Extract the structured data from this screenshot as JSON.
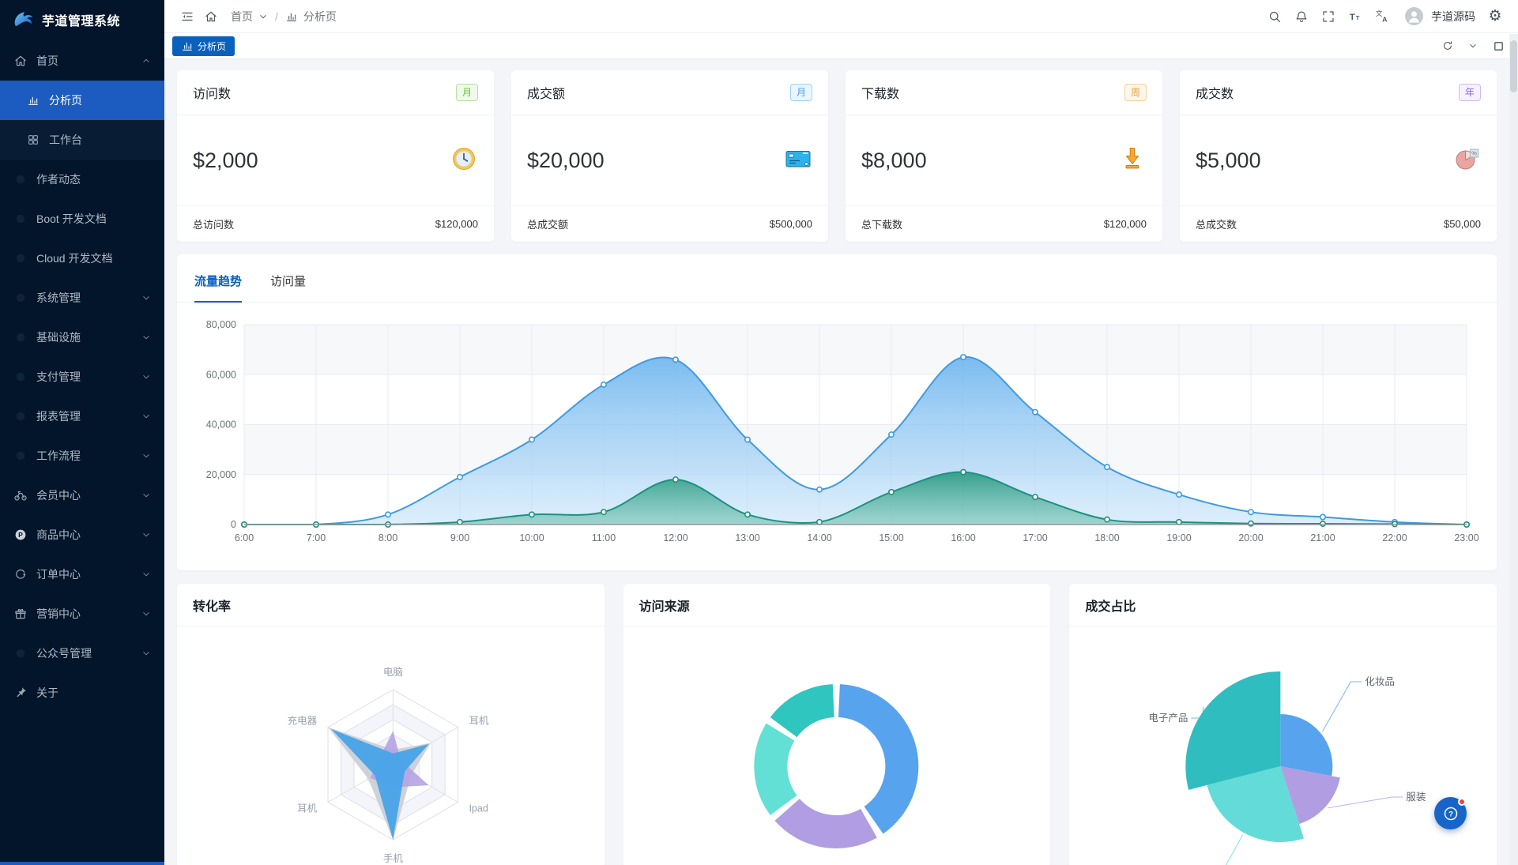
{
  "app": {
    "logo_title": "芋道管理系统"
  },
  "sidebar": {
    "items": [
      {
        "label": "首页",
        "icon": "home-icon",
        "chevron": "up",
        "type": "root"
      },
      {
        "label": "分析页",
        "icon": "bar-chart-icon",
        "type": "sub",
        "active": true
      },
      {
        "label": "工作台",
        "icon": "grid-icon",
        "type": "sub"
      },
      {
        "label": "作者动态",
        "icon": "dot-icon"
      },
      {
        "label": "Boot 开发文档",
        "icon": "dot-icon"
      },
      {
        "label": "Cloud 开发文档",
        "icon": "dot-icon"
      },
      {
        "label": "系统管理",
        "icon": "dot-icon",
        "chevron": "down"
      },
      {
        "label": "基础设施",
        "icon": "dot-icon",
        "chevron": "down"
      },
      {
        "label": "支付管理",
        "icon": "dot-icon",
        "chevron": "down"
      },
      {
        "label": "报表管理",
        "icon": "dot-icon",
        "chevron": "down"
      },
      {
        "label": "工作流程",
        "icon": "dot-icon",
        "chevron": "down"
      },
      {
        "label": "会员中心",
        "icon": "member-icon",
        "chevron": "down"
      },
      {
        "label": "商品中心",
        "icon": "product-icon",
        "chevron": "down"
      },
      {
        "label": "订单中心",
        "icon": "order-icon",
        "chevron": "down"
      },
      {
        "label": "营销中心",
        "icon": "gift-icon",
        "chevron": "down"
      },
      {
        "label": "公众号管理",
        "icon": "dot-icon",
        "chevron": "down"
      },
      {
        "label": "关于",
        "icon": "pin-icon"
      }
    ]
  },
  "header": {
    "breadcrumb_home": "首页",
    "breadcrumb_page": "分析页",
    "user_name": "芋道源码"
  },
  "tabbar": {
    "active_tab": "分析页"
  },
  "stats": [
    {
      "title": "访问数",
      "badge": "月",
      "badge_style": "green",
      "value": "$2,000",
      "icon": "clock-icon",
      "footer_label": "总访问数",
      "footer_value": "$120,000"
    },
    {
      "title": "成交额",
      "badge": "月",
      "badge_style": "blue",
      "value": "$20,000",
      "icon": "bank-card-icon",
      "footer_label": "总成交额",
      "footer_value": "$500,000"
    },
    {
      "title": "下载数",
      "badge": "周",
      "badge_style": "orange",
      "value": "$8,000",
      "icon": "download-icon",
      "footer_label": "总下载数",
      "footer_value": "$120,000"
    },
    {
      "title": "成交数",
      "badge": "年",
      "badge_style": "purple",
      "value": "$5,000",
      "icon": "percent-pie-icon",
      "footer_label": "总成交数",
      "footer_value": "$50,000"
    }
  ],
  "trend": {
    "tabs": [
      "流量趋势",
      "访问量"
    ],
    "active_tab_index": 0,
    "chart_data": {
      "type": "area",
      "x": [
        "6:00",
        "7:00",
        "8:00",
        "9:00",
        "10:00",
        "11:00",
        "12:00",
        "13:00",
        "14:00",
        "15:00",
        "16:00",
        "17:00",
        "18:00",
        "19:00",
        "20:00",
        "21:00",
        "22:00",
        "23:00"
      ],
      "ylim": [
        0,
        80000
      ],
      "yticks": [
        0,
        20000,
        40000,
        60000,
        80000
      ],
      "grid": "split-area",
      "legend": "none",
      "series": [
        {
          "name": "series-blue",
          "color": "#3f9ae2",
          "fill_top": "#6fb6ee",
          "fill_bottom": "#c0e0f9",
          "values": [
            0,
            0,
            4000,
            19000,
            34000,
            56000,
            66000,
            34000,
            14000,
            36000,
            67000,
            45000,
            23000,
            12000,
            5000,
            3000,
            1000,
            0
          ]
        },
        {
          "name": "series-green",
          "color": "#1d9180",
          "fill_top": "#2a9a83",
          "fill_bottom": "#6ec0ae",
          "values": [
            0,
            0,
            0,
            1000,
            4000,
            5000,
            18000,
            4000,
            1000,
            13000,
            21000,
            11000,
            2000,
            1000,
            400,
            300,
            200,
            0
          ]
        }
      ]
    }
  },
  "panels": [
    {
      "title": "转化率",
      "chart_data": {
        "type": "radar",
        "max": 100,
        "indicators": [
          "电脑",
          "耳机",
          "Ipad",
          "手机",
          "耳机",
          "充电器"
        ],
        "series": [
          {
            "name": "shadow-grey",
            "color": "#c9ccd4",
            "values": [
              20,
              58,
              28,
              100,
              38,
              100
            ]
          },
          {
            "name": "series-purple",
            "color": "#b5a0e3",
            "values": [
              45,
              12,
              55,
              30,
              35,
              20
            ]
          },
          {
            "name": "series-blue",
            "color": "#47a3e8",
            "values": [
              15,
              55,
              18,
              100,
              28,
              95
            ]
          }
        ]
      }
    },
    {
      "title": "访问来源",
      "chart_data": {
        "type": "donut",
        "segments": [
          {
            "color": "#57a3ee",
            "value": 42
          },
          {
            "color": "#b19de1",
            "value": 23
          },
          {
            "color": "#63e0d5",
            "value": 20
          },
          {
            "color": "#2fc6c0",
            "value": 15
          }
        ]
      }
    },
    {
      "title": "成交占比",
      "chart_data": {
        "type": "pie_rose",
        "slices": [
          {
            "label": "化妆品",
            "color": "#57a3ee",
            "value": 28,
            "radius": 0.55,
            "label_at": [
              372,
              66
            ],
            "side": "right"
          },
          {
            "label": "服装",
            "color": "#b19de1",
            "value": 17,
            "radius": 0.64,
            "label_at": [
              424,
              212
            ],
            "side": "right"
          },
          {
            "label": "",
            "color": "#63dcd9",
            "value": 26,
            "radius": 0.8,
            "label_at": [
              233,
              330
            ],
            "side": "down"
          },
          {
            "label": "电子产品",
            "color": "#2fbdbf",
            "value": 29,
            "radius": 1.0,
            "label_at": [
              148,
              112
            ],
            "side": "left"
          }
        ]
      }
    }
  ],
  "colors": {
    "primary": "#0960bd",
    "sidebar_bg": "#02152b",
    "sidebar_active": "#1c5bbf",
    "content_bg": "#f3f5f9",
    "help_badge": "#f53f3f"
  }
}
